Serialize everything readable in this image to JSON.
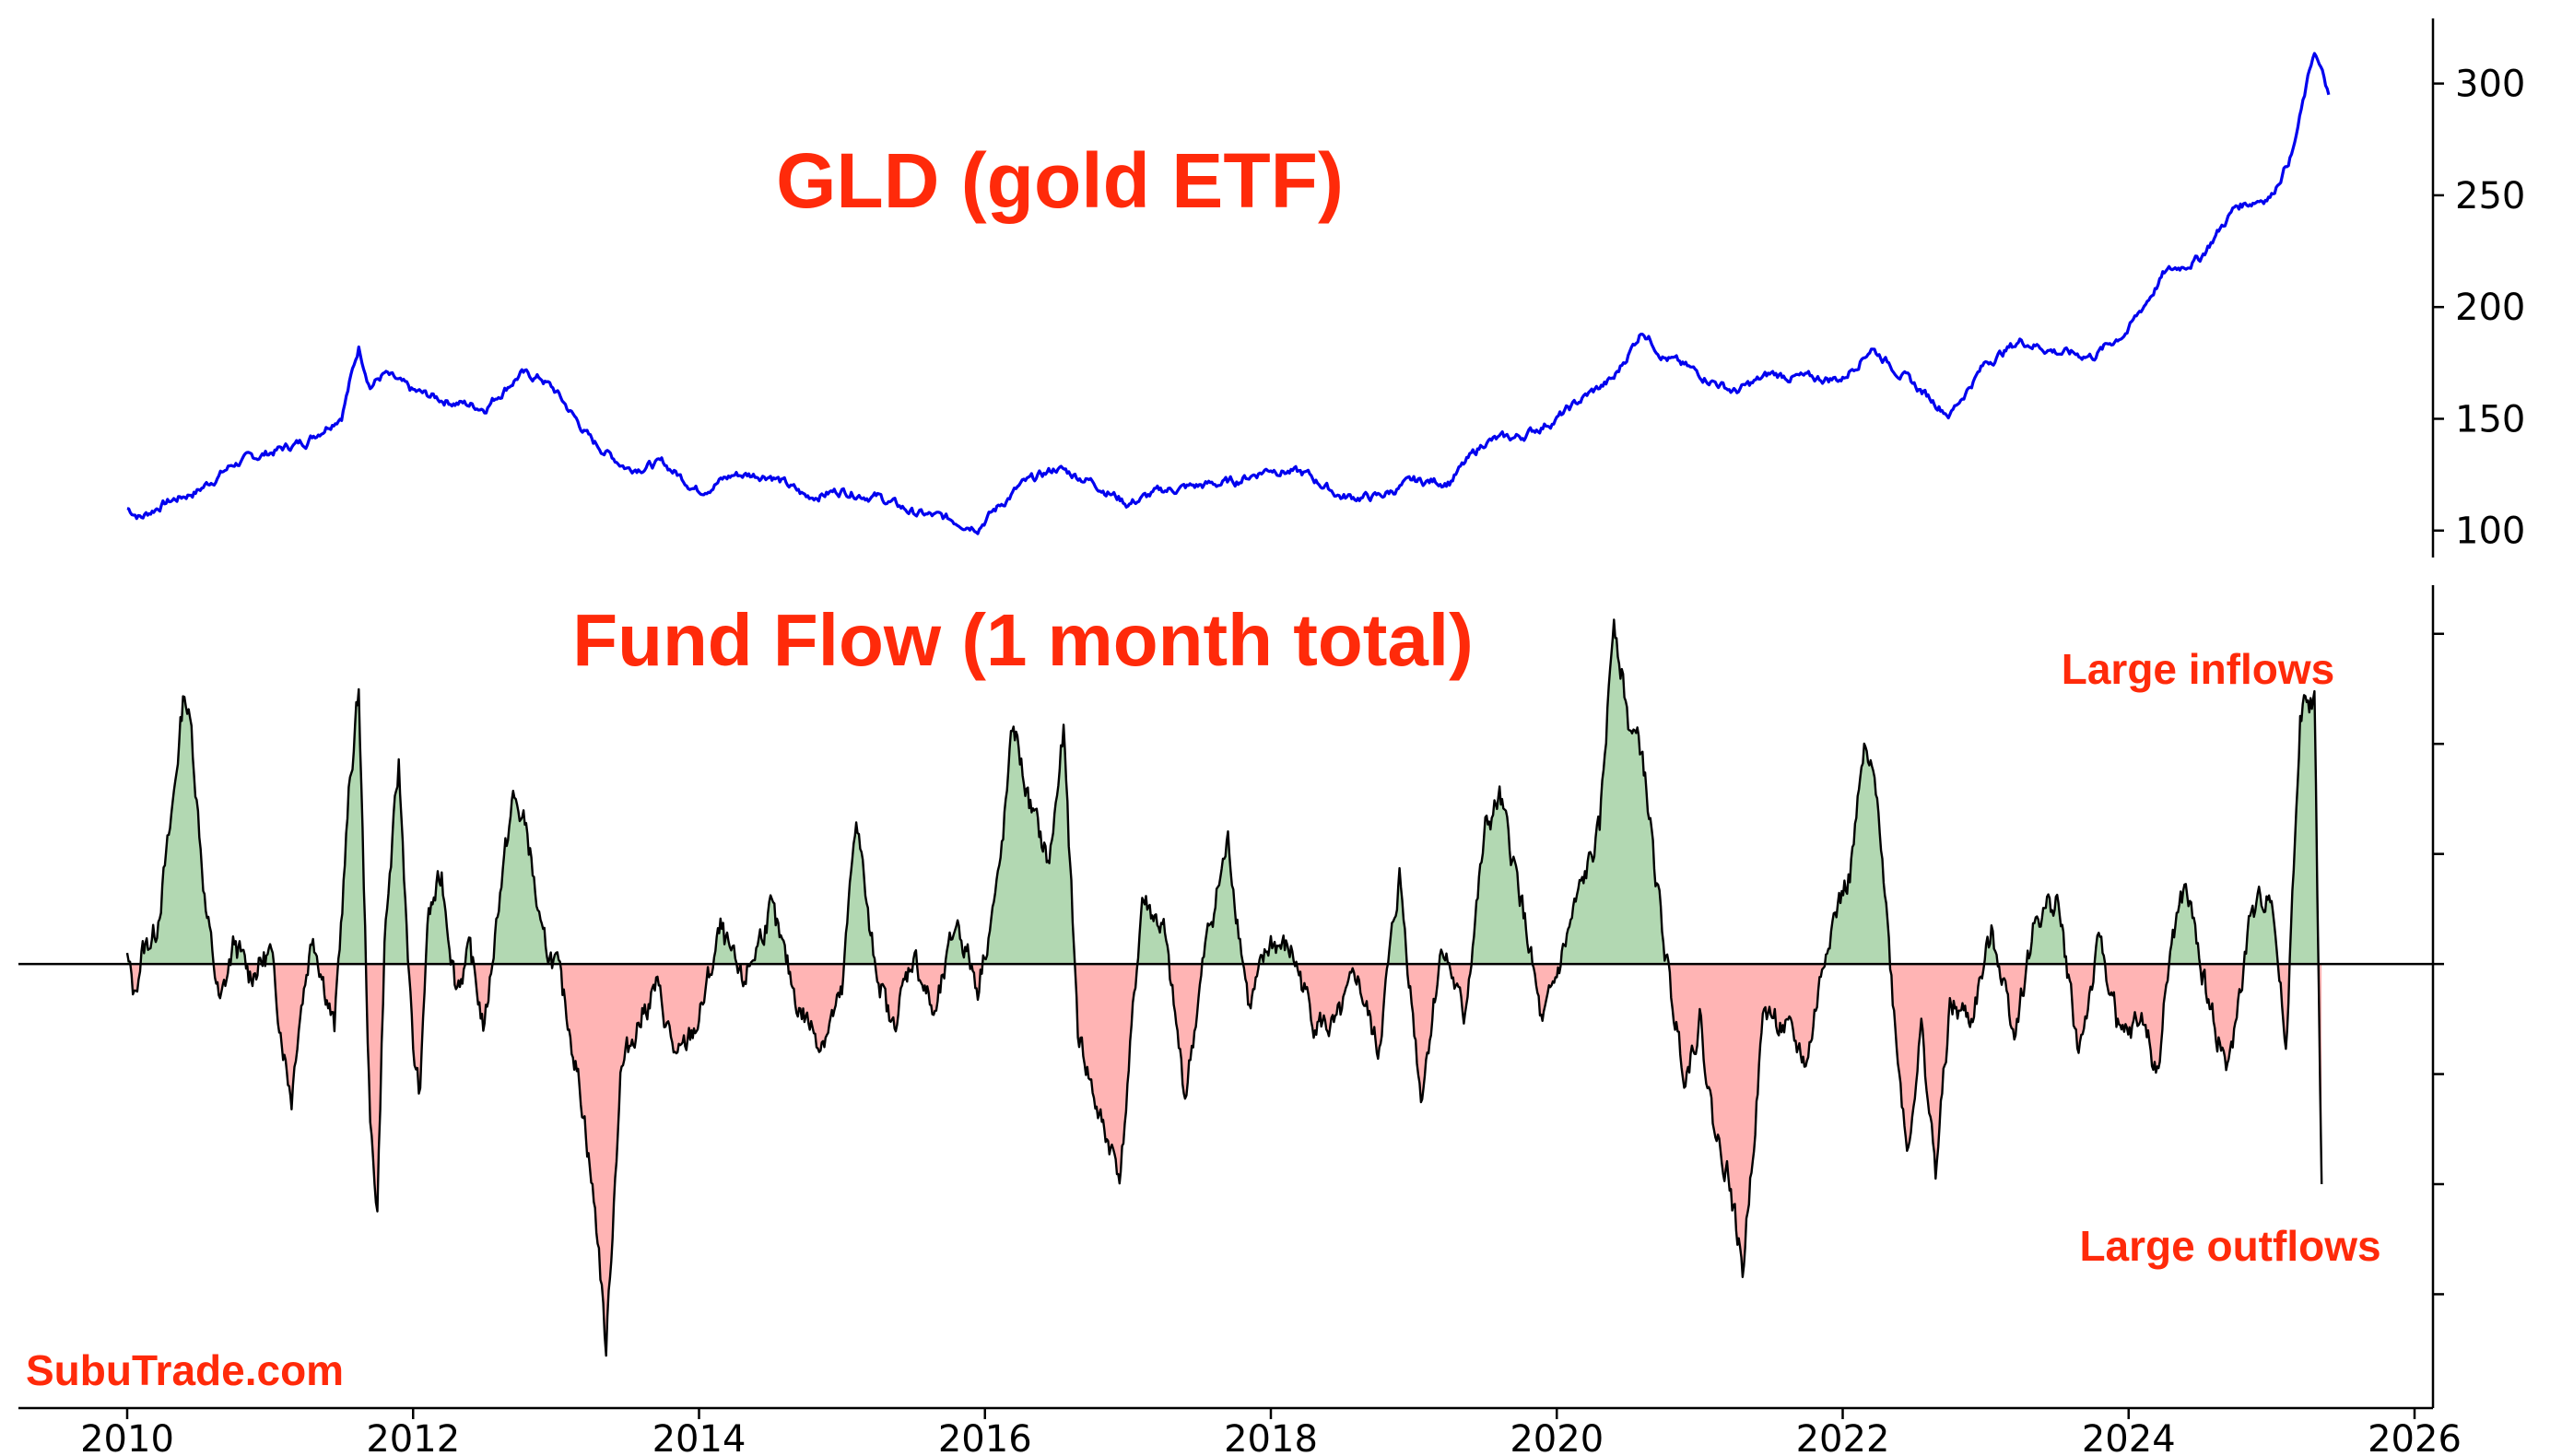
{
  "chart_data": [
    {
      "type": "line",
      "title": "GLD (gold ETF)",
      "color": "#0000ee",
      "y_axis_side": "right",
      "yticks": [
        100,
        150,
        200,
        250,
        300
      ],
      "ylim": [
        90,
        325
      ],
      "xlim": [
        2010,
        2026
      ],
      "x": [
        2010.0,
        2010.1,
        2010.25,
        2010.5,
        2010.75,
        2011.0,
        2011.25,
        2011.5,
        2011.62,
        2011.7,
        2011.8,
        2012.0,
        2012.25,
        2012.5,
        2012.75,
        2012.9,
        2013.0,
        2013.25,
        2013.5,
        2013.75,
        2014.0,
        2014.25,
        2014.5,
        2014.75,
        2015.0,
        2015.25,
        2015.5,
        2015.75,
        2015.95,
        2016.25,
        2016.5,
        2016.75,
        2017.0,
        2017.25,
        2017.5,
        2017.75,
        2018.0,
        2018.25,
        2018.5,
        2018.75,
        2019.0,
        2019.25,
        2019.5,
        2019.75,
        2020.0,
        2020.2,
        2020.4,
        2020.6,
        2020.75,
        2021.0,
        2021.25,
        2021.5,
        2021.75,
        2022.0,
        2022.2,
        2022.5,
        2022.75,
        2023.0,
        2023.25,
        2023.5,
        2023.75,
        2024.0,
        2024.25,
        2024.5,
        2024.75,
        2025.0,
        2025.15,
        2025.3,
        2025.4
      ],
      "values": [
        110,
        106,
        112,
        118,
        130,
        135,
        140,
        152,
        182,
        165,
        170,
        162,
        158,
        155,
        170,
        168,
        162,
        140,
        128,
        130,
        118,
        125,
        125,
        115,
        118,
        115,
        108,
        105,
        102,
        120,
        128,
        122,
        112,
        118,
        120,
        122,
        128,
        125,
        115,
        115,
        122,
        122,
        140,
        142,
        150,
        160,
        168,
        190,
        178,
        170,
        162,
        170,
        168,
        168,
        182,
        165,
        152,
        175,
        185,
        180,
        178,
        190,
        215,
        222,
        245,
        250,
        270,
        315,
        295
      ]
    },
    {
      "type": "area",
      "title": "Fund Flow (1 month total)",
      "yticks_labeled": false,
      "ylim": [
        -3.8,
        3.4
      ],
      "xlim": [
        2010,
        2026
      ],
      "xticks": [
        "2010",
        "2012",
        "2014",
        "2016",
        "2018",
        "2020",
        "2022",
        "2024",
        "2026"
      ],
      "positive_fill": "#b2d8b2",
      "negative_fill": "#ffb4b4",
      "line_color": "#000000",
      "x": [
        2010.0,
        2010.05,
        2010.1,
        2010.2,
        2010.3,
        2010.4,
        2010.45,
        2010.55,
        2010.65,
        2010.75,
        2010.85,
        2011.0,
        2011.1,
        2011.15,
        2011.2,
        2011.3,
        2011.45,
        2011.55,
        2011.62,
        2011.7,
        2011.75,
        2011.8,
        2011.9,
        2012.0,
        2012.05,
        2012.1,
        2012.2,
        2012.3,
        2012.4,
        2012.5,
        2012.6,
        2012.7,
        2012.8,
        2012.9,
        2013.0,
        2013.1,
        2013.2,
        2013.3,
        2013.35,
        2013.45,
        2013.55,
        2013.7,
        2013.85,
        2014.0,
        2014.15,
        2014.3,
        2014.5,
        2014.7,
        2014.85,
        2015.0,
        2015.1,
        2015.2,
        2015.35,
        2015.5,
        2015.65,
        2015.8,
        2015.95,
        2016.1,
        2016.2,
        2016.3,
        2016.45,
        2016.55,
        2016.65,
        2016.8,
        2016.95,
        2017.1,
        2017.25,
        2017.4,
        2017.55,
        2017.7,
        2017.85,
        2018.0,
        2018.15,
        2018.3,
        2018.45,
        2018.6,
        2018.75,
        2018.9,
        2019.05,
        2019.2,
        2019.35,
        2019.5,
        2019.6,
        2019.75,
        2019.9,
        2020.0,
        2020.15,
        2020.3,
        2020.4,
        2020.5,
        2020.6,
        2020.7,
        2020.8,
        2020.9,
        2021.0,
        2021.1,
        2021.2,
        2021.3,
        2021.45,
        2021.6,
        2021.75,
        2021.9,
        2022.05,
        2022.15,
        2022.25,
        2022.35,
        2022.45,
        2022.55,
        2022.65,
        2022.75,
        2022.9,
        2023.05,
        2023.2,
        2023.35,
        2023.5,
        2023.65,
        2023.8,
        2023.95,
        2024.1,
        2024.2,
        2024.3,
        2024.4,
        2024.55,
        2024.7,
        2024.85,
        2025.0,
        2025.1,
        2025.2,
        2025.3,
        2025.35
      ],
      "values": [
        0.05,
        -0.3,
        0.1,
        0.3,
        1.2,
        2.5,
        2.1,
        0.5,
        -0.4,
        0.2,
        -0.1,
        0.1,
        -0.8,
        -1.2,
        -0.5,
        0.3,
        -0.6,
        1.5,
        2.5,
        -1.5,
        -2.2,
        0.2,
        1.8,
        -0.8,
        -1.2,
        0.4,
        0.8,
        -0.2,
        0.1,
        -0.6,
        0.6,
        1.5,
        1.2,
        0.2,
        0.0,
        -0.6,
        -1.4,
        -2.6,
        -3.5,
        -1.0,
        -0.6,
        -0.2,
        -0.9,
        -0.5,
        0.3,
        -0.2,
        0.5,
        -0.4,
        -0.7,
        -0.3,
        1.4,
        0.2,
        -0.6,
        0.1,
        -0.5,
        0.4,
        -0.2,
        0.8,
        2.2,
        1.5,
        0.9,
        2.1,
        -0.6,
        -1.4,
        -1.9,
        0.6,
        0.3,
        -1.2,
        0.2,
        1.1,
        -0.4,
        0.2,
        0.1,
        -0.5,
        -0.6,
        -0.1,
        -0.8,
        0.8,
        -1.2,
        0.2,
        -0.5,
        1.2,
        1.5,
        0.6,
        -0.6,
        -0.1,
        0.6,
        1.2,
        3.2,
        2.2,
        1.9,
        0.7,
        -0.3,
        -1.0,
        -0.5,
        -1.5,
        -1.9,
        -2.8,
        -0.4,
        -0.6,
        -0.9,
        0.3,
        0.8,
        1.9,
        1.5,
        -0.3,
        -1.7,
        -0.6,
        -1.9,
        -0.4,
        -0.5,
        0.3,
        -0.6,
        0.4,
        0.6,
        -0.8,
        0.2,
        -0.7,
        -0.5,
        -1.0,
        0.2,
        0.7,
        -0.3,
        -1.0,
        0.4,
        0.7,
        -0.8,
        2.3,
        2.4,
        -2.0
      ]
    }
  ],
  "annotations": {
    "inflows": "Large inflows",
    "outflows": "Large outflows"
  },
  "watermark": "SubuTrade.com"
}
